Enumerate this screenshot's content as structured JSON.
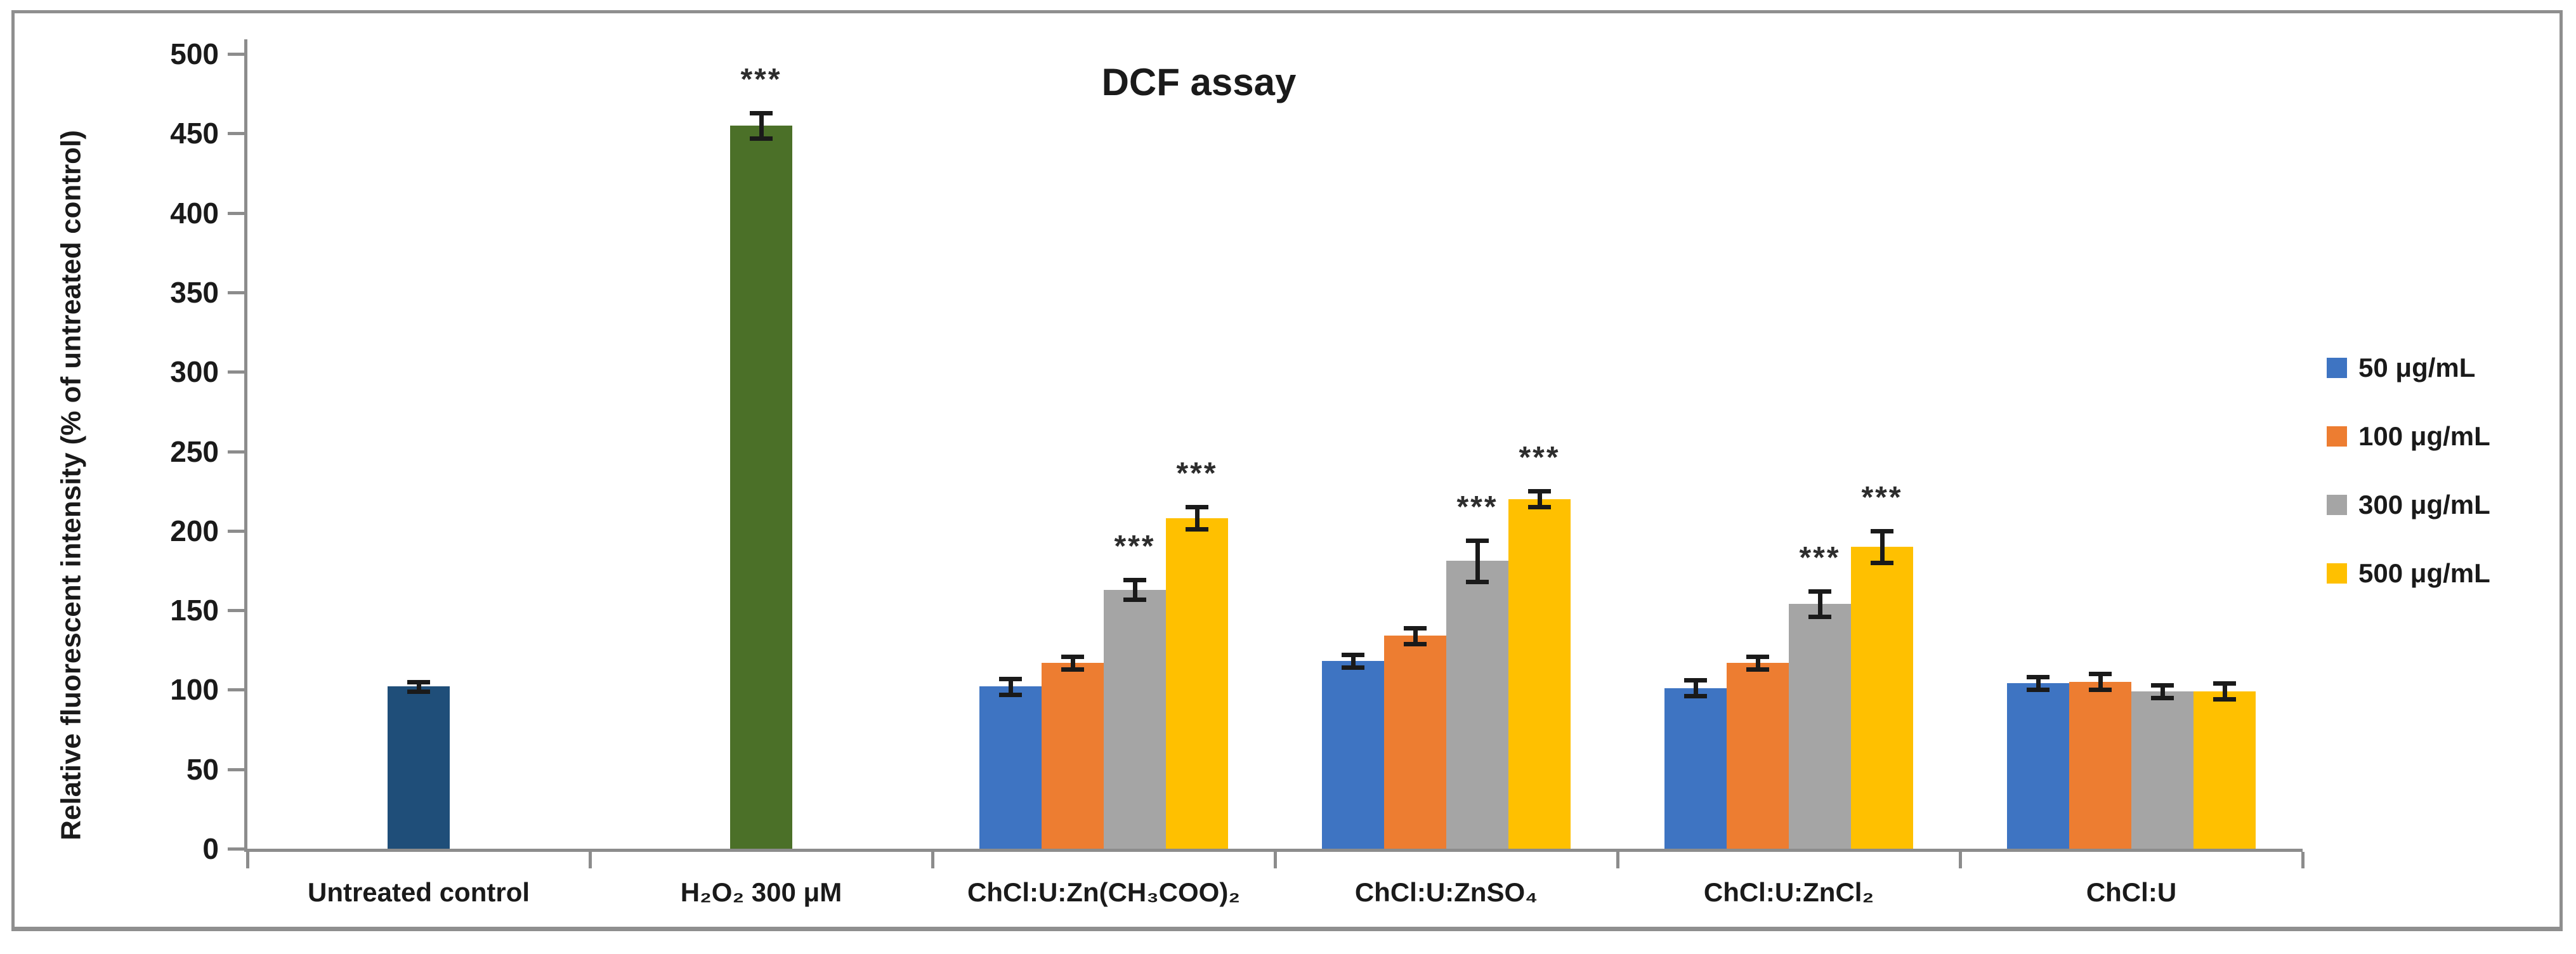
{
  "figure": {
    "title": "DCF assay",
    "y_axis_label": "Relative fluorescent intensity (% of untreated control)"
  },
  "colors": {
    "control_navy": "#1F4E79",
    "peroxide_green": "#4B7028",
    "series_blue": "#3E74C2",
    "series_orange": "#ED7D31",
    "series_gray": "#A5A5A5",
    "series_yellow": "#FFC000",
    "axis_gray": "#8C8C8C",
    "text": "#1A1A1A",
    "significance": "#2D2D2D"
  },
  "legend": {
    "position": "right",
    "items": [
      {
        "label": "50 μg/mL",
        "color": "#3E74C2"
      },
      {
        "label": "100 μg/mL",
        "color": "#ED7D31"
      },
      {
        "label": "300 μg/mL",
        "color": "#A5A5A5"
      },
      {
        "label": "500 μg/mL",
        "color": "#FFC000"
      }
    ]
  },
  "chart_data": {
    "type": "bar",
    "title": "DCF assay",
    "xlabel": "",
    "ylabel": "Relative fluorescent intensity (% of untreated control)",
    "ylim": [
      0,
      500
    ],
    "ytick_step": 50,
    "ytick_labels": [
      "0",
      "50",
      "100",
      "150",
      "200",
      "250",
      "300",
      "350",
      "400",
      "450",
      "500"
    ],
    "grid": false,
    "legend_position": "right",
    "error_bars": true,
    "significance_note": "*** shown above significantly increased bars",
    "series_names": [
      "50 μg/mL",
      "100 μg/mL",
      "300 μg/mL",
      "500 μg/mL"
    ],
    "groups": [
      {
        "category": "Untreated control",
        "bars": [
          {
            "series": "Untreated control",
            "value": 102,
            "error": 3,
            "stars": "",
            "color": "#1F4E79"
          }
        ]
      },
      {
        "category": "H₂O₂ 300 μM",
        "bars": [
          {
            "series": "H₂O₂ 300 μM",
            "value": 455,
            "error": 8,
            "stars": "***",
            "color": "#4B7028"
          }
        ]
      },
      {
        "category": "ChCl:U:Zn(CH₃COO)₂",
        "bars": [
          {
            "series": "50 μg/mL",
            "value": 102,
            "error": 5,
            "stars": "",
            "color": "#3E74C2"
          },
          {
            "series": "100 μg/mL",
            "value": 117,
            "error": 4,
            "stars": "",
            "color": "#ED7D31"
          },
          {
            "series": "300 μg/mL",
            "value": 163,
            "error": 6,
            "stars": "***",
            "color": "#A5A5A5"
          },
          {
            "series": "500 μg/mL",
            "value": 208,
            "error": 7,
            "stars": "***",
            "color": "#FFC000"
          }
        ]
      },
      {
        "category": "ChCl:U:ZnSO₄",
        "bars": [
          {
            "series": "50 μg/mL",
            "value": 118,
            "error": 4,
            "stars": "",
            "color": "#3E74C2"
          },
          {
            "series": "100 μg/mL",
            "value": 134,
            "error": 5,
            "stars": "",
            "color": "#ED7D31"
          },
          {
            "series": "300 μg/mL",
            "value": 181,
            "error": 13,
            "stars": "***",
            "color": "#A5A5A5"
          },
          {
            "series": "500 μg/mL",
            "value": 220,
            "error": 5,
            "stars": "***",
            "color": "#FFC000"
          }
        ]
      },
      {
        "category": "ChCl:U:ZnCl₂",
        "bars": [
          {
            "series": "50 μg/mL",
            "value": 101,
            "error": 5,
            "stars": "",
            "color": "#3E74C2"
          },
          {
            "series": "100 μg/mL",
            "value": 117,
            "error": 4,
            "stars": "",
            "color": "#ED7D31"
          },
          {
            "series": "300 μg/mL",
            "value": 154,
            "error": 8,
            "stars": "***",
            "color": "#A5A5A5"
          },
          {
            "series": "500 μg/mL",
            "value": 190,
            "error": 10,
            "stars": "***",
            "color": "#FFC000"
          }
        ]
      },
      {
        "category": "ChCl:U",
        "bars": [
          {
            "series": "50 μg/mL",
            "value": 104,
            "error": 4,
            "stars": "",
            "color": "#3E74C2"
          },
          {
            "series": "100 μg/mL",
            "value": 105,
            "error": 5,
            "stars": "",
            "color": "#ED7D31"
          },
          {
            "series": "300 μg/mL",
            "value": 99,
            "error": 4,
            "stars": "",
            "color": "#A5A5A5"
          },
          {
            "series": "500 μg/mL",
            "value": 99,
            "error": 5,
            "stars": "",
            "color": "#FFC000"
          }
        ]
      }
    ]
  }
}
